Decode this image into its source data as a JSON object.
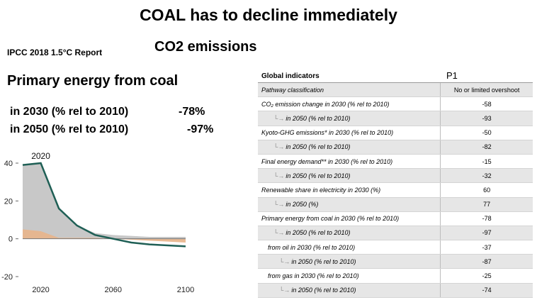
{
  "title": "COAL has to decline immediately",
  "subtitle": "CO2 emissions",
  "source": "IPCC 2018 1.5°C Report",
  "coal_heading": "Primary energy from coal",
  "stats": [
    {
      "label": "in 2030 (% rel to 2010)",
      "value": "-78%"
    },
    {
      "label": "in 2050 (% rel to 2010)",
      "value": "-97%"
    }
  ],
  "table": {
    "col1_header": "Global indicators",
    "col2_header": "P1",
    "rows": [
      {
        "label": "Pathway classification",
        "value": "No or limited overshoot",
        "level": 0
      },
      {
        "label": "CO₂ emission change in 2030 (% rel to 2010)",
        "value": "-58",
        "level": 0
      },
      {
        "label": "in 2050 (% rel to 2010)",
        "value": "-93",
        "level": 1
      },
      {
        "label": "Kyoto-GHG emissions* in 2030 (% rel to 2010)",
        "value": "-50",
        "level": 0
      },
      {
        "label": "in 2050 (% rel to 2010)",
        "value": "-82",
        "level": 1
      },
      {
        "label": "Final energy demand** in 2030 (% rel to 2010)",
        "value": "-15",
        "level": 0
      },
      {
        "label": "in 2050 (% rel to 2010)",
        "value": "-32",
        "level": 1
      },
      {
        "label": "Renewable share in electricity in 2030 (%)",
        "value": "60",
        "level": 0
      },
      {
        "label": "in 2050 (%)",
        "value": "77",
        "level": 1
      },
      {
        "label": "Primary energy from coal in 2030 (% rel to 2010)",
        "value": "-78",
        "level": 0
      },
      {
        "label": "in 2050 (% rel to 2010)",
        "value": "-97",
        "level": 1
      },
      {
        "label": "from oil in 2030 (% rel to 2010)",
        "value": "-37",
        "level": 2
      },
      {
        "label": "in 2050 (% rel to 2010)",
        "value": "-87",
        "level": 3
      },
      {
        "label": "from gas in 2030 (% rel to 2010)",
        "value": "-25",
        "level": 2
      },
      {
        "label": "in 2050 (% rel to 2010)",
        "value": "-74",
        "level": 3
      }
    ]
  },
  "chart_data": {
    "type": "area",
    "annotation": "2020",
    "x_ticks": [
      2020,
      2060,
      2100
    ],
    "y_ticks": [
      40,
      20,
      0,
      -20
    ],
    "xlim": [
      2010,
      2100
    ],
    "ylim": [
      -20,
      40
    ],
    "grid": false,
    "series": [
      {
        "name": "",
        "type": "line",
        "color": "#1f5f55",
        "x": [
          2010,
          2020,
          2030,
          2040,
          2050,
          2060,
          2070,
          2080,
          2090,
          2100
        ],
        "y": [
          39,
          40,
          16,
          7,
          2,
          0,
          -2,
          -3,
          -3.5,
          -4
        ]
      },
      {
        "name": "",
        "type": "area",
        "color": "#c8c8c8",
        "x": [
          2010,
          2020,
          2030,
          2040,
          2050,
          2060,
          2070,
          2080,
          2090,
          2100
        ],
        "y": [
          39,
          40,
          16,
          7,
          3,
          2,
          1.5,
          1,
          1,
          1
        ]
      },
      {
        "name": "",
        "type": "area",
        "color": "#e8b48a",
        "x": [
          2010,
          2020,
          2030,
          2040,
          2050,
          2060,
          2070,
          2080,
          2090,
          2100
        ],
        "y": [
          5,
          4,
          0.5,
          0.5,
          0.5,
          0,
          -0.5,
          -1,
          -1.5,
          -2
        ]
      }
    ]
  }
}
